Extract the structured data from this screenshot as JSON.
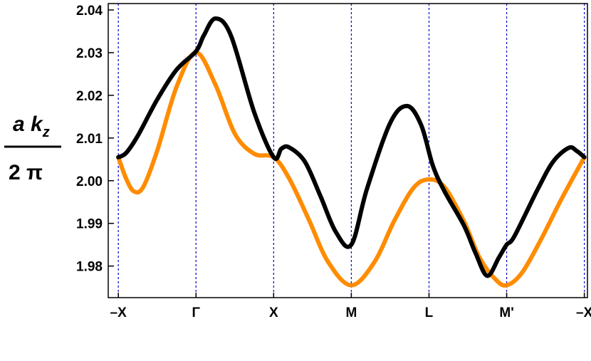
{
  "chart_data": {
    "type": "line",
    "ylabel": {
      "numerator": "a k",
      "subscript": "z",
      "denominator": "2 π"
    },
    "x_ticks": [
      "–X",
      "Γ",
      "X",
      "M",
      "L",
      "M'",
      "–X"
    ],
    "x_tick_positions": [
      0,
      1,
      2,
      3,
      4,
      5,
      6
    ],
    "y_ticks": [
      "1.98",
      "1.99",
      "2.00",
      "2.01",
      "2.02",
      "2.03",
      "2.04"
    ],
    "y_tick_values": [
      1.98,
      1.99,
      2.0,
      2.01,
      2.02,
      2.03,
      2.04
    ],
    "xlim": [
      -0.13,
      6.04
    ],
    "ylim": [
      1.9726,
      2.0415
    ],
    "grid": "dashed vertical lines at high-symmetry points",
    "series": [
      {
        "color": "#ff8c00",
        "points": [
          [
            0,
            2.0055
          ],
          [
            0.1,
            2.0005
          ],
          [
            0.2,
            1.9975
          ],
          [
            0.32,
            1.9985
          ],
          [
            0.5,
            2.007
          ],
          [
            0.75,
            2.022
          ],
          [
            1.0,
            2.03
          ],
          [
            1.25,
            2.0225
          ],
          [
            1.5,
            2.011
          ],
          [
            1.75,
            2.0063
          ],
          [
            2.0,
            2.0055
          ],
          [
            2.2,
            2.0005
          ],
          [
            2.45,
            1.991
          ],
          [
            2.7,
            1.981
          ],
          [
            3.0,
            1.9755
          ],
          [
            3.3,
            1.981
          ],
          [
            3.55,
            1.9905
          ],
          [
            3.8,
            1.9983
          ],
          [
            4.0,
            2.0003
          ],
          [
            4.2,
            1.9985
          ],
          [
            4.45,
            1.9905
          ],
          [
            4.65,
            1.982
          ],
          [
            4.85,
            1.977
          ],
          [
            5.0,
            1.9755
          ],
          [
            5.2,
            1.9785
          ],
          [
            5.45,
            1.9865
          ],
          [
            5.7,
            1.9955
          ],
          [
            6.0,
            2.0055
          ]
        ]
      },
      {
        "color": "#000000",
        "points": [
          [
            0,
            2.0055
          ],
          [
            0.1,
            2.0065
          ],
          [
            0.25,
            2.0105
          ],
          [
            0.5,
            2.019
          ],
          [
            0.75,
            2.026
          ],
          [
            1.0,
            2.0303
          ],
          [
            1.1,
            2.034
          ],
          [
            1.25,
            2.038
          ],
          [
            1.45,
            2.034
          ],
          [
            1.75,
            2.016
          ],
          [
            2.0,
            2.0055
          ],
          [
            2.1,
            2.0075
          ],
          [
            2.2,
            2.0078
          ],
          [
            2.4,
            2.0045
          ],
          [
            2.6,
            1.9965
          ],
          [
            2.8,
            1.988
          ],
          [
            3.0,
            1.985
          ],
          [
            3.2,
            1.998
          ],
          [
            3.5,
            2.0135
          ],
          [
            3.72,
            2.0175
          ],
          [
            3.9,
            2.013
          ],
          [
            4.05,
            2.0035
          ],
          [
            4.2,
            1.9975
          ],
          [
            4.45,
            1.9895
          ],
          [
            4.6,
            1.983
          ],
          [
            4.75,
            1.9777
          ],
          [
            4.9,
            1.982
          ],
          [
            5.0,
            1.985
          ],
          [
            5.1,
            1.987
          ],
          [
            5.4,
            1.998
          ],
          [
            5.6,
            2.0045
          ],
          [
            5.8,
            2.0077
          ],
          [
            5.9,
            2.007
          ],
          [
            6.0,
            2.0055
          ]
        ]
      }
    ]
  },
  "colors": {
    "gridline": "#0000cc",
    "frame": "#000000"
  }
}
